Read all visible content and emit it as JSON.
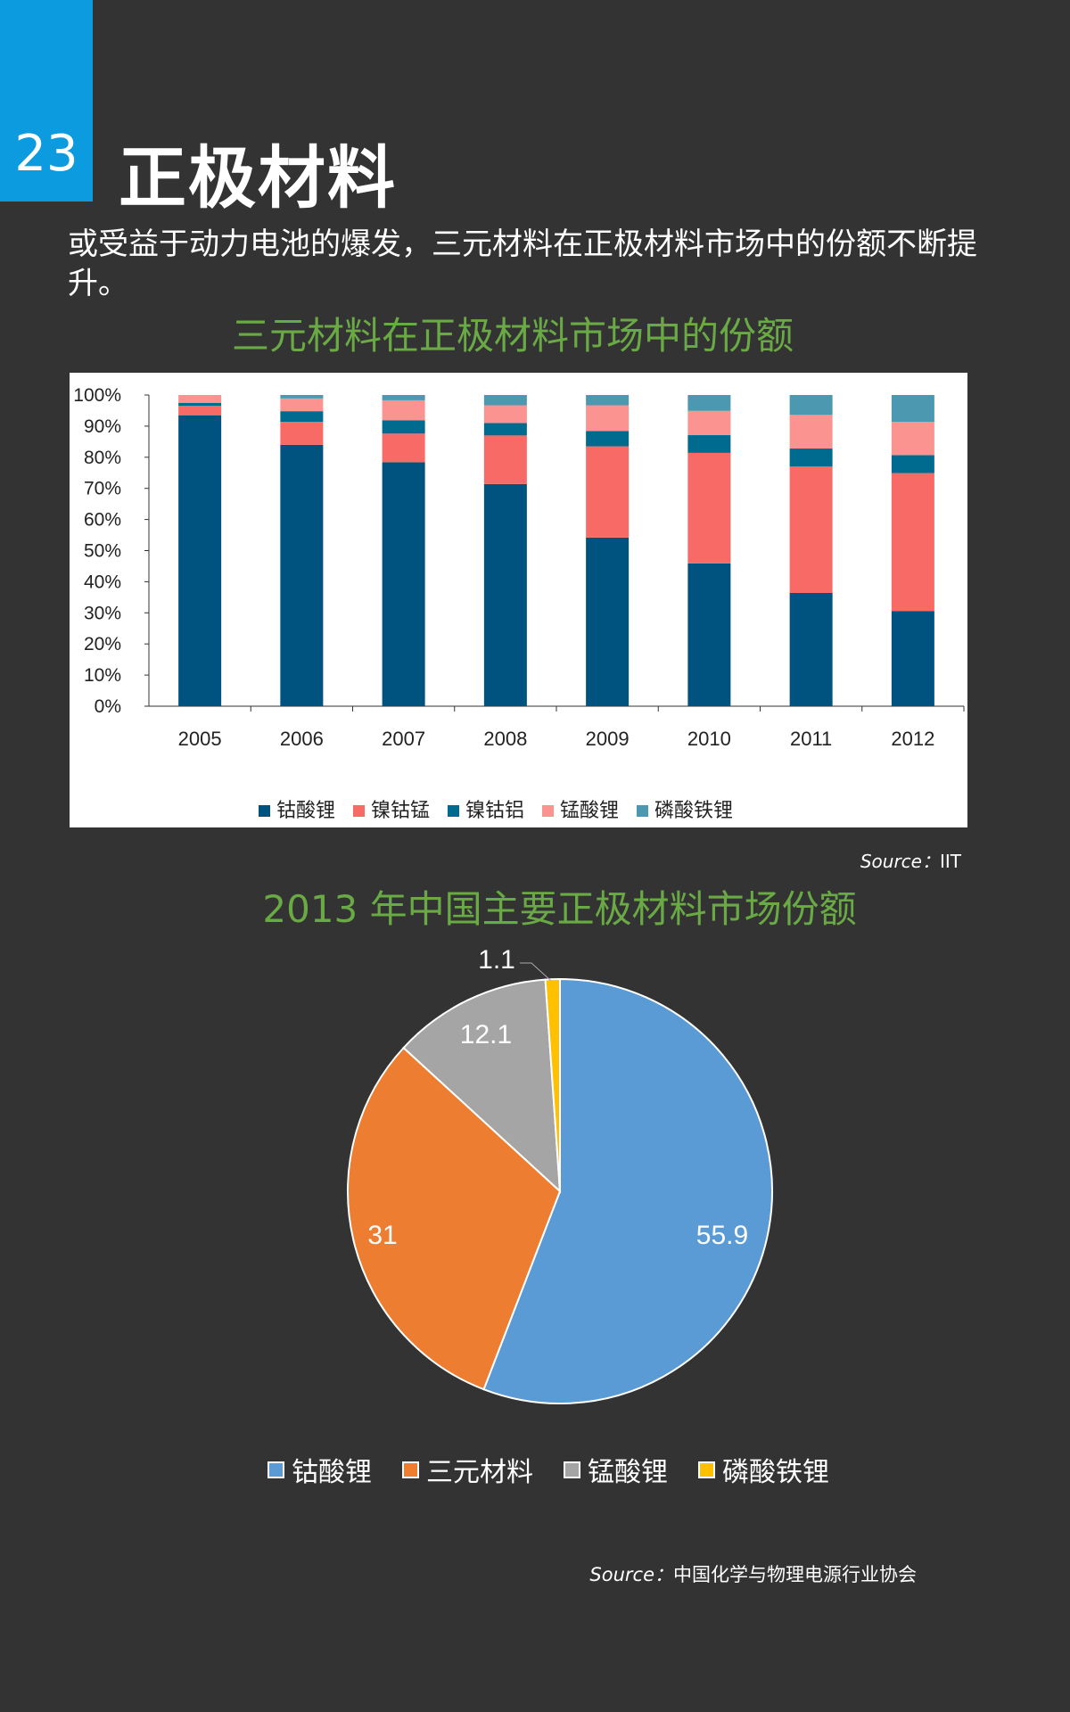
{
  "header": {
    "number": "23",
    "title": "正极材料"
  },
  "intro": "或受益于动力电池的爆发，三元材料在正极材料市场中的份额不断提升。",
  "chart_data": [
    {
      "type": "bar",
      "stacked": true,
      "title": "三元材料在正极材料市场中的份额",
      "categories": [
        "2005",
        "2006",
        "2007",
        "2008",
        "2009",
        "2010",
        "2011",
        "2012"
      ],
      "yticks": [
        "0%",
        "10%",
        "20%",
        "30%",
        "40%",
        "50%",
        "60%",
        "70%",
        "80%",
        "90%",
        "100%"
      ],
      "ylim": [
        0,
        100
      ],
      "legend_position": "bottom",
      "series": [
        {
          "name": "钴酸锂",
          "color": "#00527f",
          "values": [
            93.5,
            84,
            78.4,
            71.4,
            54.2,
            45.9,
            36.4,
            30.6
          ]
        },
        {
          "name": "镍钴锰",
          "color": "#f76a66",
          "values": [
            3,
            7.4,
            9.2,
            15.6,
            29.3,
            35.5,
            40.6,
            44.3
          ]
        },
        {
          "name": "镍钴铝",
          "color": "#006b8e",
          "values": [
            1,
            3.4,
            4.3,
            4,
            4.9,
            5.7,
            5.8,
            5.8
          ]
        },
        {
          "name": "锰酸锂",
          "color": "#fb9390",
          "values": [
            2.5,
            4.1,
            6.4,
            5.7,
            8.3,
            7.8,
            10.8,
            10.7
          ]
        },
        {
          "name": "磷酸铁锂",
          "color": "#4c98b0",
          "values": [
            0,
            1.1,
            1.7,
            3.3,
            3.3,
            5.1,
            6.4,
            8.6
          ]
        }
      ],
      "source_label": "Source：",
      "source": "IIT"
    },
    {
      "type": "pie",
      "title": "2013 年中国主要正极材料市场份额",
      "legend_position": "bottom",
      "slices": [
        {
          "name": "钴酸锂",
          "value": 55.9,
          "label": "55.9",
          "color": "#5b9bd5"
        },
        {
          "name": "三元材料",
          "value": 31,
          "label": "31",
          "color": "#ed7d31"
        },
        {
          "name": "锰酸锂",
          "value": 12.1,
          "label": "12.1",
          "color": "#a5a5a5"
        },
        {
          "name": "磷酸铁锂",
          "value": 1.1,
          "label": "1.1",
          "color": "#ffc000"
        }
      ],
      "source_label": "Source：",
      "source": "中国化学与物理电源行业协会"
    }
  ]
}
